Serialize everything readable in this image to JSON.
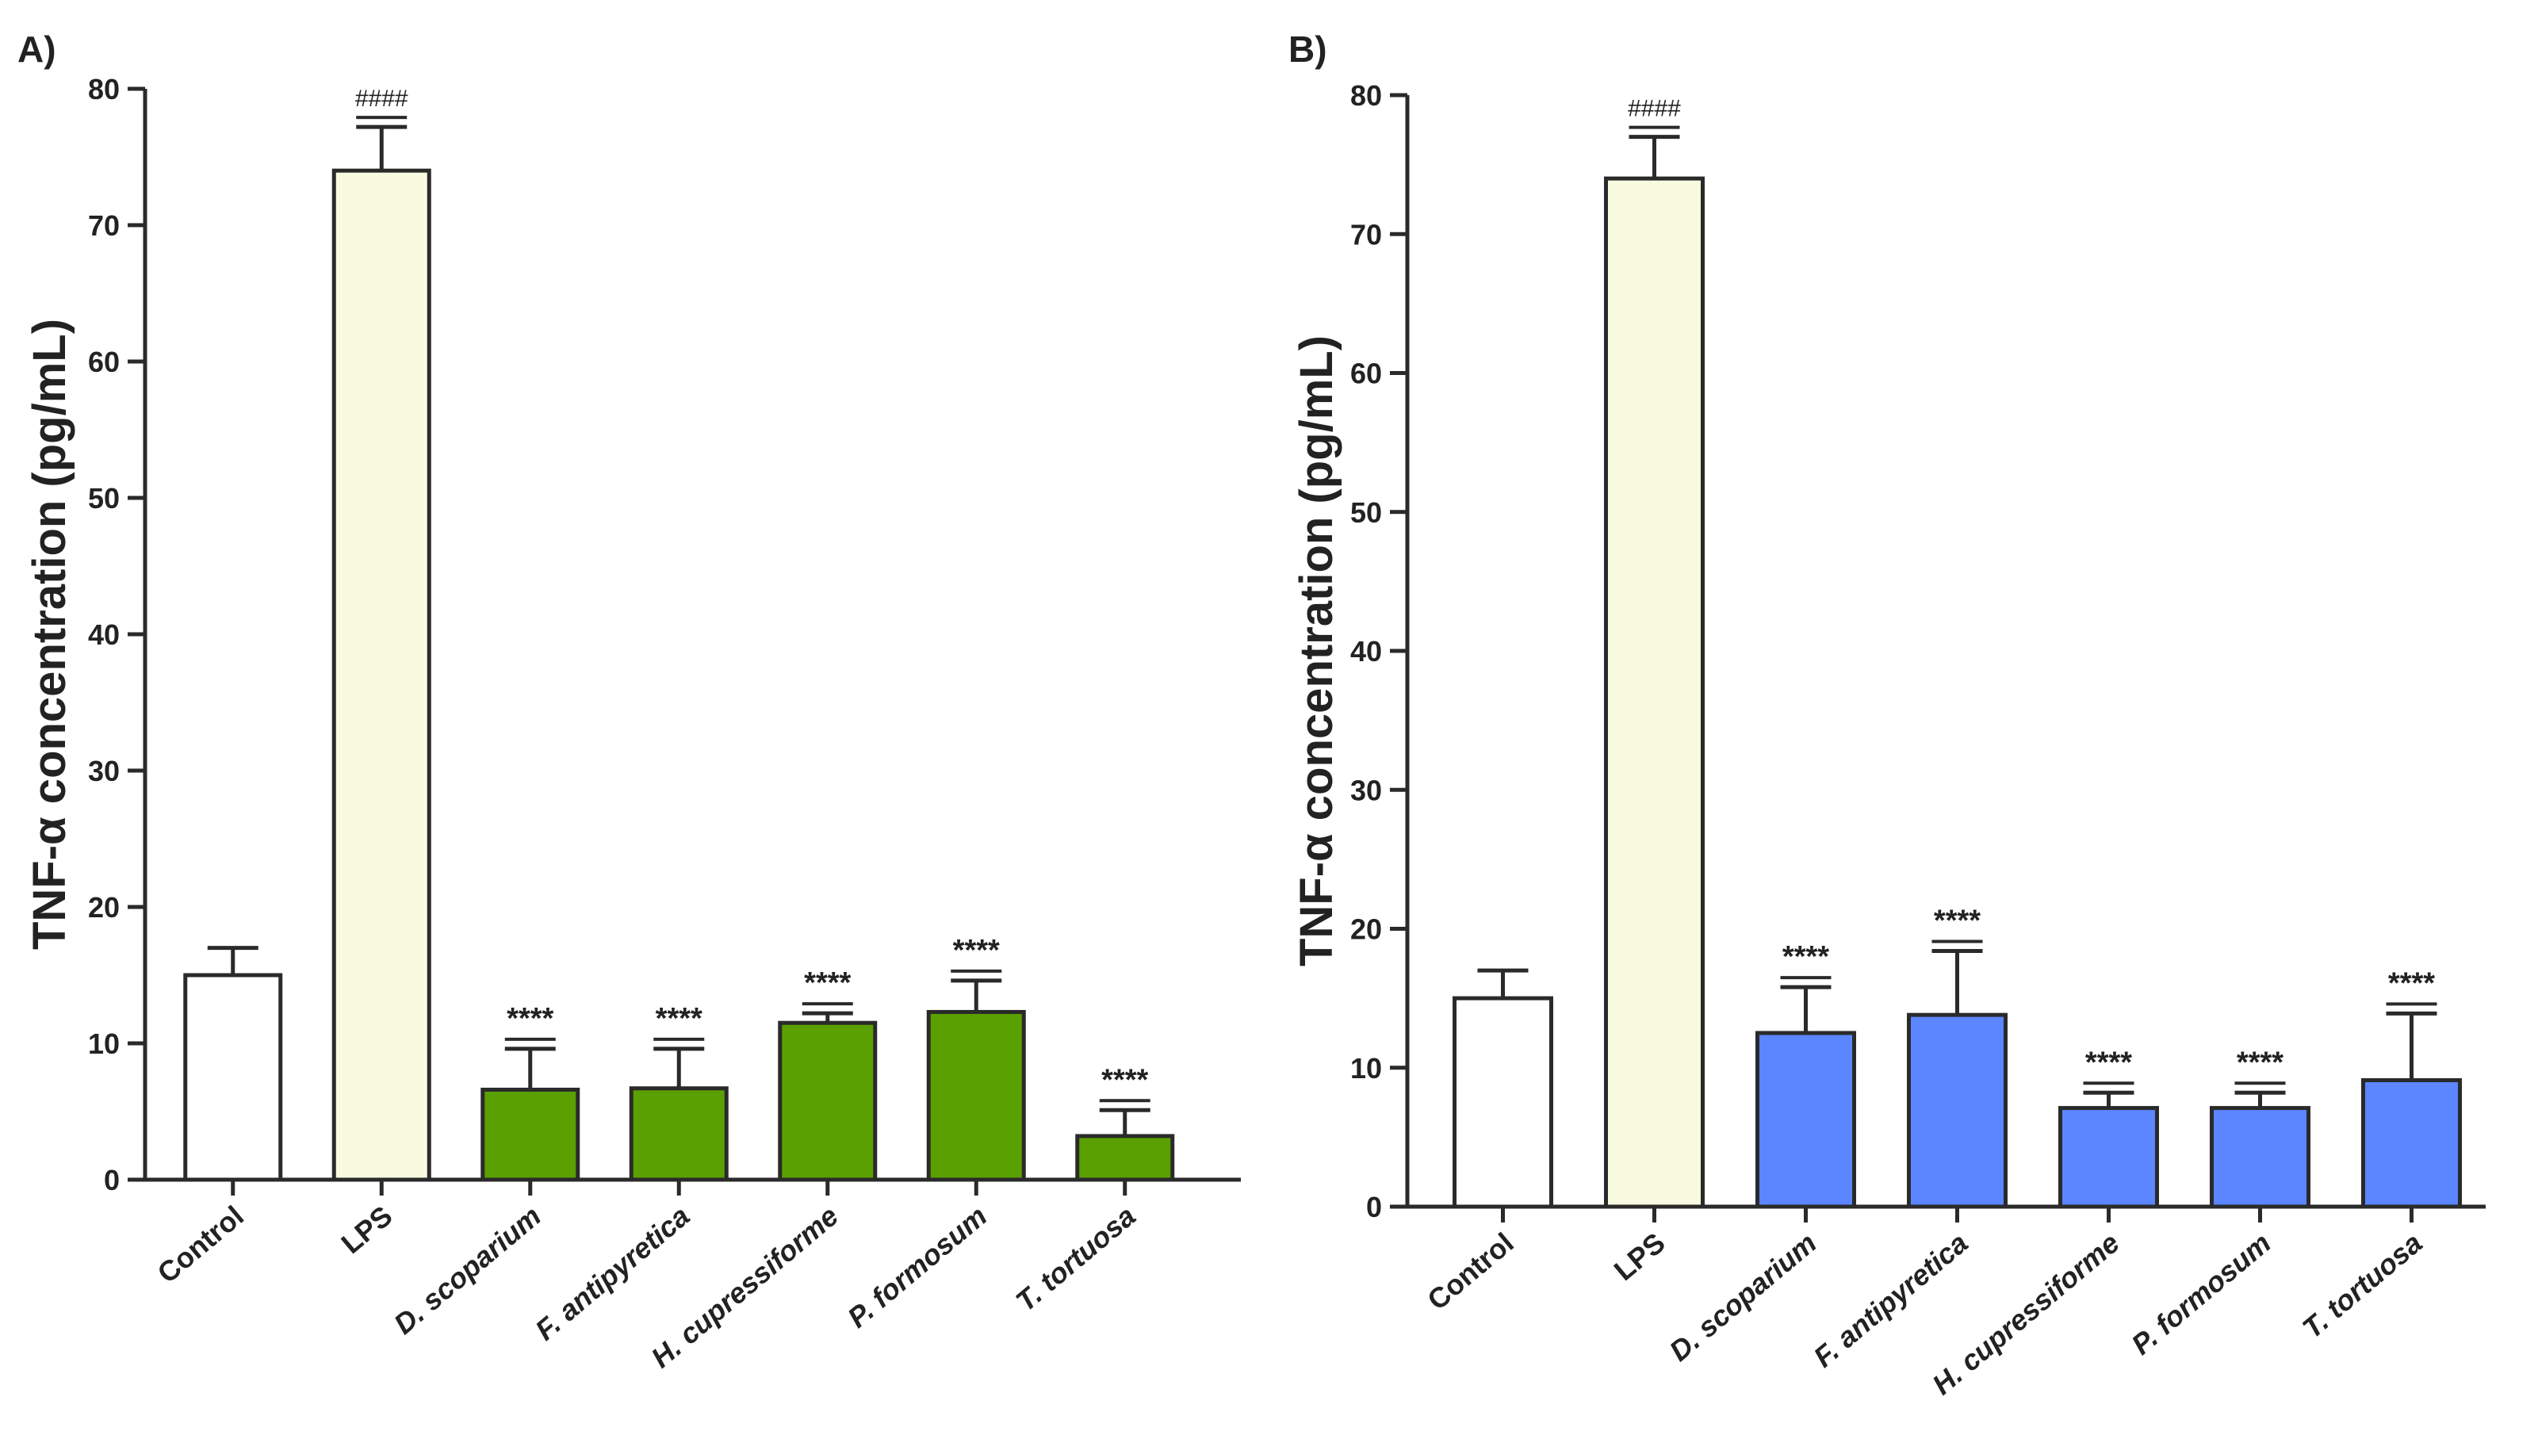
{
  "chart_data": [
    {
      "type": "bar",
      "panel_label": "A)",
      "title": "",
      "xlabel": "",
      "ylabel": "TNF-α concentration (pg/mL)",
      "ylim": [
        0,
        80
      ],
      "yticks": [
        0,
        10,
        20,
        30,
        40,
        50,
        60,
        70,
        80
      ],
      "categories": [
        "Control",
        "LPS",
        "D. scoparium",
        "F. antipyretica",
        "H. cupressiforme",
        "P. formosum",
        "T. tortuosa"
      ],
      "italic_categories": [
        false,
        false,
        true,
        true,
        true,
        true,
        true
      ],
      "values": [
        15.0,
        74.0,
        6.6,
        6.7,
        11.5,
        12.3,
        3.2
      ],
      "errors": [
        2.0,
        3.2,
        3.0,
        2.9,
        0.7,
        2.3,
        1.9
      ],
      "significance": [
        "",
        "####",
        "****",
        "****",
        "****",
        "****",
        "****"
      ],
      "colors": [
        "#ffffff",
        "#f9fbe0",
        "#5aa000",
        "#5aa000",
        "#5aa000",
        "#5aa000",
        "#5aa000"
      ]
    },
    {
      "type": "bar",
      "panel_label": "B)",
      "title": "",
      "xlabel": "",
      "ylabel": "TNF-α concentration (pg/mL)",
      "ylim": [
        0,
        80
      ],
      "yticks": [
        0,
        10,
        20,
        30,
        40,
        50,
        60,
        70,
        80
      ],
      "categories": [
        "Control",
        "LPS",
        "D. scoparium",
        "F. antipyretica",
        "H. cupressiforme",
        "P. formosum",
        "T. tortuosa"
      ],
      "italic_categories": [
        false,
        false,
        true,
        true,
        true,
        true,
        true
      ],
      "values": [
        15.0,
        74.0,
        12.5,
        13.8,
        7.1,
        7.1,
        9.1
      ],
      "errors": [
        2.0,
        3.0,
        3.3,
        4.6,
        1.1,
        1.1,
        4.8
      ],
      "significance": [
        "",
        "####",
        "****",
        "****",
        "****",
        "****",
        "****"
      ],
      "colors": [
        "#ffffff",
        "#f9fbe0",
        "#5b86ff",
        "#5b86ff",
        "#5b86ff",
        "#5b86ff",
        "#5b86ff"
      ]
    }
  ]
}
